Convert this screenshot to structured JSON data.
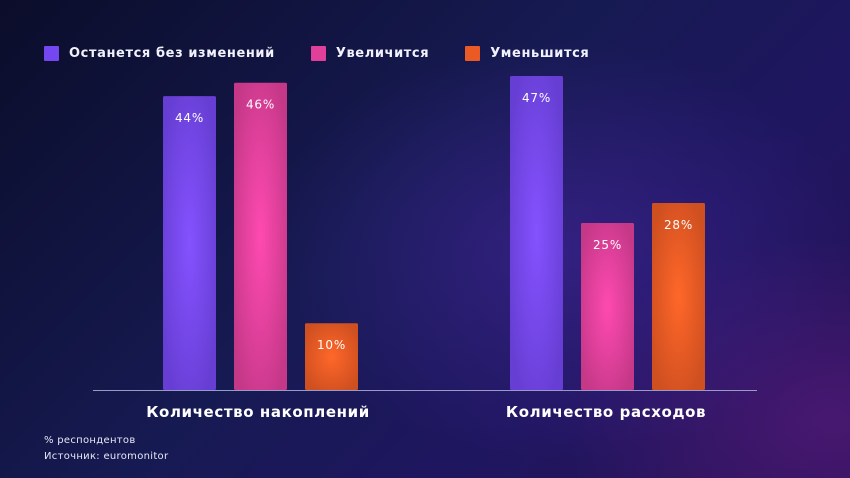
{
  "chart_data": {
    "type": "bar",
    "categories": [
      "Количество накоплений",
      "Количество расходов"
    ],
    "series": [
      {
        "name": "Останется без изменений",
        "color": "#7447f0",
        "values": [
          44,
          47
        ],
        "labels": [
          "44%",
          "47%"
        ]
      },
      {
        "name": "Увеличится",
        "color": "#e0409a",
        "values": [
          46,
          25
        ],
        "labels": [
          "46%",
          "25%"
        ]
      },
      {
        "name": "Уменьшится",
        "color": "#ea5a24",
        "values": [
          10,
          28
        ],
        "labels": [
          "10%",
          "28%"
        ]
      }
    ],
    "ylim": [
      0,
      50
    ],
    "grid": false,
    "legend_position": "top-left",
    "baseline_color": "#9a9ac8"
  },
  "notes": {
    "unit": "% респондентов",
    "source": "Источник: euromonitor"
  }
}
